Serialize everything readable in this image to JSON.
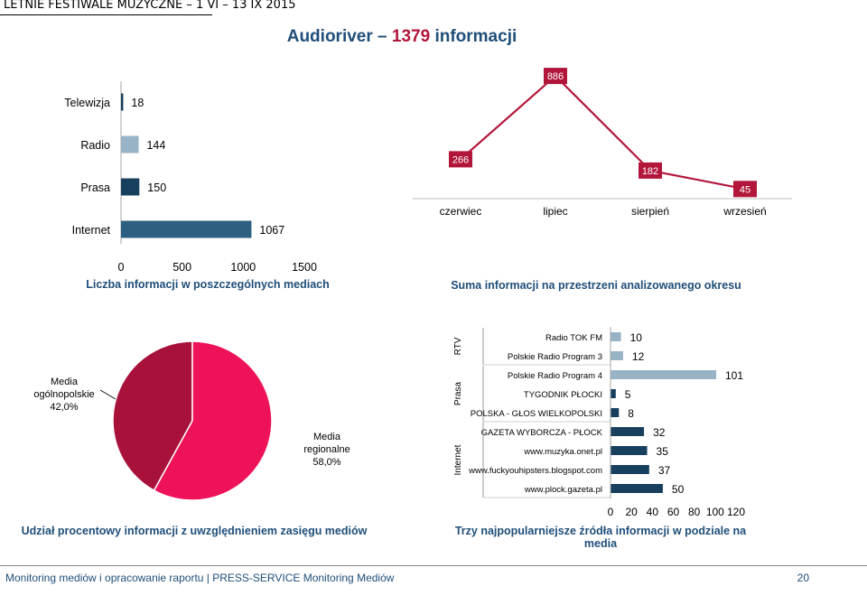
{
  "header": {
    "text": "LETNIE FESTIWALE MUZYCZNE  –  1 VI – 13 IX 2015"
  },
  "title": {
    "prefix": "Audioriver – ",
    "accent": "1379",
    "suffix": " informacji"
  },
  "colors": {
    "brand_red": "#b2163a",
    "pink": "#ee1359",
    "dark_red": "#a8113a",
    "navy": "#173f5e",
    "teal": "#2d5f80",
    "light_blue": "#98b3c5",
    "title_blue": "#1f4e79"
  },
  "chart_data": [
    {
      "type": "bar",
      "orientation": "horizontal",
      "title": "Liczba informacji w poszczególnych mediach",
      "categories": [
        "Telewizja",
        "Radio",
        "Prasa",
        "Internet"
      ],
      "values": [
        18,
        144,
        150,
        1067
      ],
      "colors": [
        "#173f5e",
        "#98b3c5",
        "#173f5e",
        "#2d5f80"
      ],
      "xlim": [
        0,
        1500
      ],
      "x_ticks": [
        0,
        500,
        1000,
        1500
      ],
      "grid": false
    },
    {
      "type": "line",
      "title": "Suma informacji na przestrzeni analizowanego okresu",
      "categories": [
        "czerwiec",
        "lipiec",
        "sierpień",
        "wrzesień"
      ],
      "values": [
        266,
        886,
        182,
        45
      ],
      "ylim": [
        0,
        900
      ],
      "color": "#b2163a"
    },
    {
      "type": "pie",
      "title": "Udział procentowy informacji z uwzględnieniem zasięgu mediów",
      "slices": [
        {
          "label": "Media ogólnopolskie",
          "value_label": "42,0%",
          "value": 42.0,
          "color": "#a8113a"
        },
        {
          "label": "Media regionalne",
          "value_label": "58,0%",
          "value": 58.0,
          "color": "#ee1359"
        }
      ]
    },
    {
      "type": "bar",
      "orientation": "horizontal",
      "title": "Trzy najpopularniejsze źródła informacji w podziale na media",
      "groups": [
        {
          "name": "RTV",
          "items": [
            {
              "label": "Radio TOK FM",
              "value": 10
            },
            {
              "label": "Polskie Radio Program 3",
              "value": 12
            }
          ]
        },
        {
          "name": "Prasa",
          "items": [
            {
              "label": "Polskie Radio Program 4",
              "value": 101
            },
            {
              "label": "TYGODNIK PŁOCKI",
              "value": 5
            },
            {
              "label": "POLSKA - GŁOS WIELKOPOLSKI",
              "value": 8
            }
          ]
        },
        {
          "name": "Internet",
          "items": [
            {
              "label": "GAZETA WYBORCZA - PŁOCK",
              "value": 32
            },
            {
              "label": "www.muzyka.onet.pl",
              "value": 35
            },
            {
              "label": "www.fuckyouhipsters.blogspot.com",
              "value": 37
            },
            {
              "label": "www.plock.gazeta.pl",
              "value": 50
            }
          ]
        }
      ],
      "xlim": [
        0,
        120
      ],
      "x_ticks": [
        0,
        20,
        40,
        60,
        80,
        100,
        120
      ],
      "grid": false
    }
  ],
  "footer": {
    "left": "Monitoring mediów i opracowanie raportu  |  PRESS-SERVICE Monitoring Mediów",
    "page": "20"
  }
}
